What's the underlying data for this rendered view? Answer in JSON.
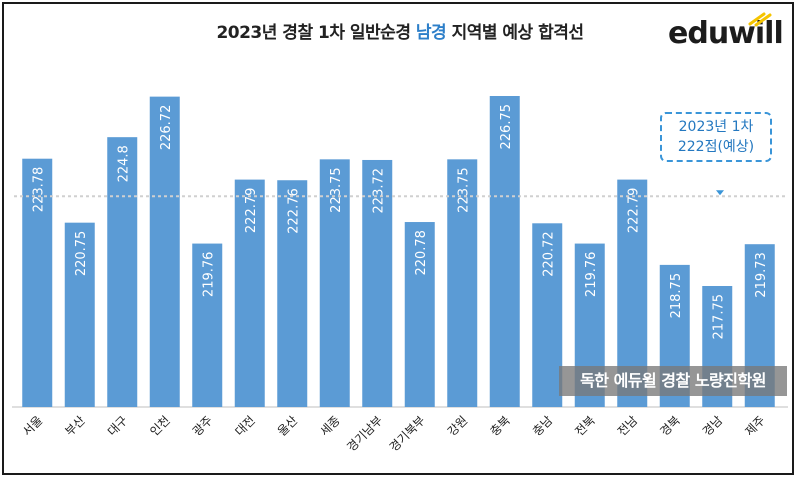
{
  "title": {
    "prefix": "2023년 경찰 1차 일반순경 ",
    "highlight": "남경",
    "suffix": " 지역별 예상 합격선"
  },
  "logo": {
    "text": "eduwill"
  },
  "callout": {
    "line1": "2023년 1차",
    "line2": "222점(예상)"
  },
  "watermark": {
    "text": "독한 에듀윌 경찰 노량진학원"
  },
  "colors": {
    "bar": "#5b9bd5",
    "bar_text": "#ffffff",
    "highlight": "#2d7fc9",
    "reference_line": "#d0d0d0"
  },
  "chart_data": {
    "type": "bar",
    "categories": [
      "서울",
      "부산",
      "대구",
      "인천",
      "광주",
      "대전",
      "울산",
      "세종",
      "경기남부",
      "경기북부",
      "강원",
      "충북",
      "충남",
      "전북",
      "전남",
      "경북",
      "경남",
      "제주"
    ],
    "values": [
      223.78,
      220.75,
      224.8,
      226.72,
      219.76,
      222.79,
      222.76,
      223.75,
      223.72,
      220.78,
      223.75,
      226.75,
      220.72,
      219.76,
      222.79,
      218.75,
      217.75,
      219.73
    ],
    "reference_line": 222,
    "reference_label": "222점(예상)",
    "value_labels": "rotated inside bars"
  }
}
